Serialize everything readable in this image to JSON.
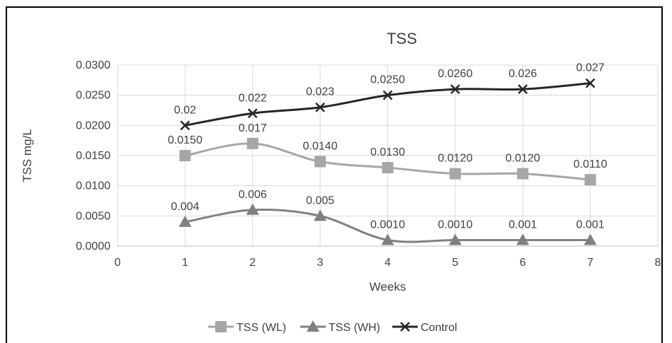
{
  "chart_data": {
    "type": "line",
    "title": "TSS",
    "xlabel": "Weeks",
    "ylabel": "TSS mg/L",
    "xlim": [
      0,
      8
    ],
    "ylim": [
      0,
      0.03
    ],
    "x_ticks": [
      "0",
      "1",
      "2",
      "3",
      "4",
      "5",
      "6",
      "7",
      "8"
    ],
    "y_ticks": [
      "0.0000",
      "0.0050",
      "0.0100",
      "0.0150",
      "0.0200",
      "0.0250",
      "0.0300"
    ],
    "grid": true,
    "legend_position": "bottom",
    "x": [
      1,
      2,
      3,
      4,
      5,
      6,
      7
    ],
    "series": [
      {
        "name": "TSS (WL)",
        "values": [
          0.015,
          0.017,
          0.014,
          0.013,
          0.012,
          0.012,
          0.011
        ],
        "labels": [
          "0.0150",
          "0.017",
          "0.0140",
          "0.0130",
          "0.0120",
          "0.0120",
          "0.0110"
        ],
        "color": "#a6a6a6",
        "marker": "square"
      },
      {
        "name": "TSS (WH)",
        "values": [
          0.004,
          0.006,
          0.005,
          0.001,
          0.001,
          0.001,
          0.001
        ],
        "labels": [
          "0.004",
          "0.006",
          "0.005",
          "0.0010",
          "0.0010",
          "0.001",
          "0.001"
        ],
        "color": "#808080",
        "marker": "triangle"
      },
      {
        "name": "Control",
        "values": [
          0.02,
          0.022,
          0.023,
          0.025,
          0.026,
          0.026,
          0.027
        ],
        "labels": [
          "0.02",
          "0.022",
          "0.023",
          "0.0250",
          "0.0260",
          "0.026",
          "0.027"
        ],
        "color": "#262626",
        "marker": "x"
      }
    ]
  }
}
